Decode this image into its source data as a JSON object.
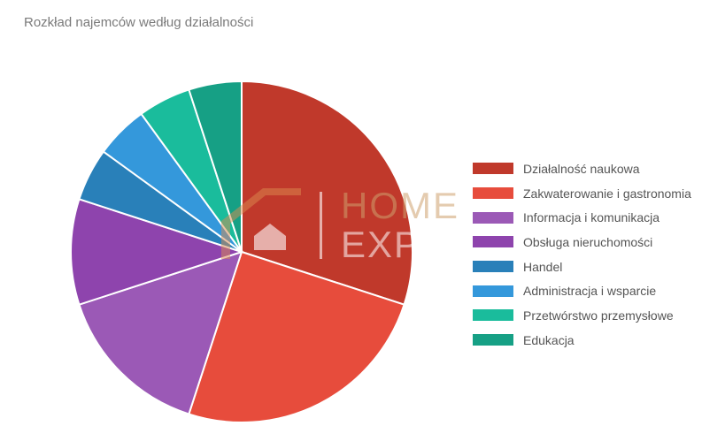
{
  "chart_data": {
    "type": "pie",
    "title": "Rozkład najemców według działalności",
    "categories": [
      "Działalność naukowa",
      "Zakwaterowanie i gastronomia",
      "Informacja i komunikacja",
      "Obsługa nieruchomości",
      "Handel",
      "Administracja i wsparcie",
      "Przetwórstwo przemysłowe",
      "Edukacja"
    ],
    "values": [
      30,
      25,
      15,
      10,
      5,
      5,
      5,
      5
    ],
    "colors": [
      "#c0392b",
      "#e74c3c",
      "#9b59b6",
      "#8e44ad",
      "#2980b9",
      "#3498db",
      "#1abc9c",
      "#16a085"
    ],
    "legend_position": "right"
  },
  "watermark": {
    "line1": "HOME",
    "line2": "EXPERTS"
  }
}
